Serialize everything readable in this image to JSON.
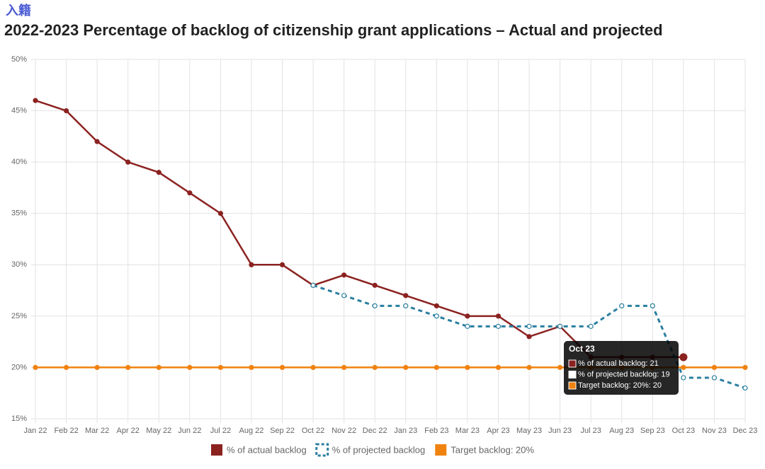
{
  "header": {
    "link": "入籍"
  },
  "chart_data": {
    "type": "line",
    "title": "2022-2023 Percentage of backlog of citizenship grant applications – Actual and projected",
    "categories": [
      "Jan 22",
      "Feb 22",
      "Mar 22",
      "Apr 22",
      "May 22",
      "Jun 22",
      "Jul 22",
      "Aug 22",
      "Sep 22",
      "Oct 22",
      "Nov 22",
      "Dec 22",
      "Jan 23",
      "Feb 23",
      "Mar 23",
      "Apr 23",
      "May 23",
      "Jun 23",
      "Jul 23",
      "Aug 23",
      "Sep 23",
      "Oct 23",
      "Nov 23",
      "Dec 23"
    ],
    "series": [
      {
        "name": "% of actual backlog",
        "color": "#8b2220",
        "dashed": false,
        "values": [
          46,
          45,
          42,
          40,
          39,
          37,
          35,
          30,
          30,
          28,
          29,
          28,
          27,
          26,
          25,
          25,
          23,
          24,
          21,
          21,
          21,
          21,
          null,
          null
        ]
      },
      {
        "name": "% of projected backlog",
        "color": "#2a7fa0",
        "dashed": true,
        "values": [
          null,
          null,
          null,
          null,
          null,
          null,
          null,
          null,
          null,
          28,
          27,
          26,
          26,
          25,
          24,
          24,
          24,
          24,
          24,
          26,
          26,
          19,
          19,
          18
        ]
      },
      {
        "name": "Target backlog: 20%",
        "color": "#f0820f",
        "dashed": false,
        "values": [
          20,
          20,
          20,
          20,
          20,
          20,
          20,
          20,
          20,
          20,
          20,
          20,
          20,
          20,
          20,
          20,
          20,
          20,
          20,
          20,
          20,
          20,
          20,
          20
        ]
      }
    ],
    "ylim": [
      15,
      50
    ],
    "yticks": [
      {
        "value": 15,
        "label": "15%"
      },
      {
        "value": 20,
        "label": "20%"
      },
      {
        "value": 25,
        "label": "25%"
      },
      {
        "value": 30,
        "label": "30%"
      },
      {
        "value": 35,
        "label": "35%"
      },
      {
        "value": 40,
        "label": "40%"
      },
      {
        "value": 45,
        "label": "45%"
      },
      {
        "value": 50,
        "label": "50%"
      }
    ],
    "grid": true,
    "legend": "bottom",
    "tooltip": {
      "title": "Oct 23",
      "items": [
        "% of actual backlog: 21",
        "% of projected backlog: 19",
        "Target backlog: 20%: 20"
      ]
    }
  }
}
